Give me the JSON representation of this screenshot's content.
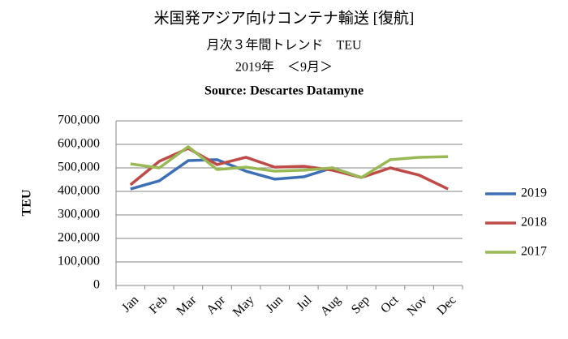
{
  "chart_data": {
    "type": "line",
    "title": "米国発アジア向けコンテナ輸送 [復航]",
    "subtitle": "月次３年間トレンド　TEU",
    "period": "2019年　＜9月＞",
    "source": "Source: Descartes Datamyne",
    "y_label": "TEU",
    "categories": [
      "Jan",
      "Feb",
      "Mar",
      "Apr",
      "May",
      "Jun",
      "Jul",
      "Aug",
      "Sep",
      "Oct",
      "Nov",
      "Dec"
    ],
    "series": [
      {
        "name": "2019",
        "color": "#3d6fb6",
        "values": [
          410000,
          445000,
          531000,
          535000,
          486000,
          452000,
          462000,
          500000,
          459000,
          null,
          null,
          null
        ]
      },
      {
        "name": "2018",
        "color": "#be4b48",
        "values": [
          428000,
          528000,
          583000,
          514000,
          545000,
          503000,
          507000,
          490000,
          459000,
          500000,
          469000,
          410000
        ]
      },
      {
        "name": "2017",
        "color": "#98b954",
        "values": [
          517000,
          500000,
          590000,
          493000,
          503000,
          486000,
          490000,
          500000,
          459000,
          535000,
          545000,
          548000
        ]
      }
    ],
    "ylim": [
      0,
      700000
    ],
    "yticks": [
      0,
      {
        "value": 100000,
        "label": "100,000"
      },
      {
        "value": 200000,
        "label": "200,000"
      },
      {
        "value": 300000,
        "label": "300,000"
      },
      {
        "value": 400000,
        "label": "400,000"
      },
      {
        "value": 500000,
        "label": "500,000"
      },
      {
        "value": 600000,
        "label": "600,000"
      },
      {
        "value": 700000,
        "label": "700,000"
      }
    ],
    "grid": true,
    "legend": "right"
  }
}
